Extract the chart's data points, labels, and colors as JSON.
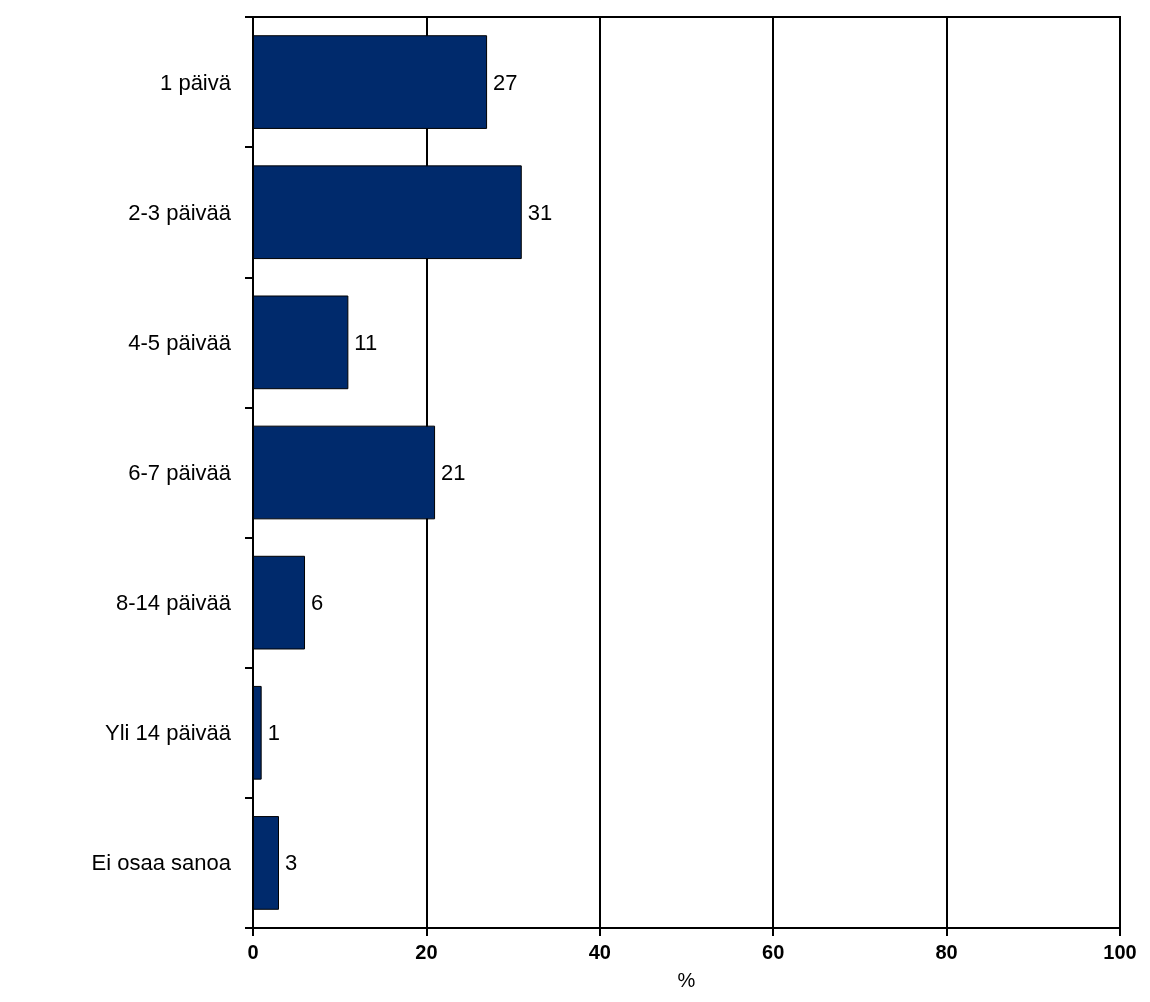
{
  "chart_data": {
    "type": "bar",
    "orientation": "horizontal",
    "xlabel": "%",
    "categories": [
      "1 päivä",
      "2-3 päivää",
      "4-5 päivää",
      "6-7 päivää",
      "8-14 päivää",
      "Yli 14 päivää",
      "Ei osaa sanoa"
    ],
    "values": [
      27,
      31,
      11,
      21,
      6,
      1,
      3
    ],
    "color": "#002a6c",
    "xlim": [
      0,
      100
    ],
    "xticks": [
      0,
      20,
      40,
      60,
      80,
      100
    ],
    "grid": "x",
    "data_labels": true
  }
}
